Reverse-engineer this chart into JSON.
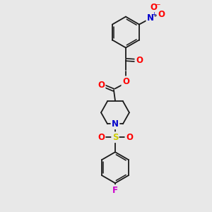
{
  "bg_color": "#e8e8e8",
  "bond_color": "#1a1a1a",
  "atom_colors": {
    "O": "#ff0000",
    "N_blue": "#0000cc",
    "S": "#cccc00",
    "F": "#cc00cc",
    "C": "#1a1a1a"
  },
  "fig_size": [
    3.0,
    3.0
  ],
  "dpi": 100
}
